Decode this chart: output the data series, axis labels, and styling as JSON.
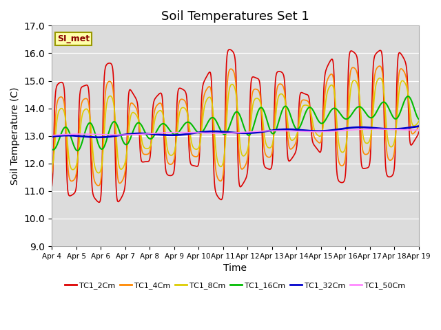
{
  "title": "Soil Temperatures Set 1",
  "xlabel": "Time",
  "ylabel": "Soil Temperature (C)",
  "ylim": [
    9.0,
    17.0
  ],
  "yticks": [
    9.0,
    10.0,
    11.0,
    12.0,
    13.0,
    14.0,
    15.0,
    16.0,
    17.0
  ],
  "date_labels": [
    "Apr 4",
    "Apr 5",
    "Apr 6",
    "Apr 7",
    "Apr 8",
    "Apr 9",
    "Apr 10",
    "Apr 11",
    "Apr 12",
    "Apr 13",
    "Apr 14",
    "Apr 15",
    "Apr 16",
    "Apr 17",
    "Apr 18",
    "Apr 19"
  ],
  "annotation": "SI_met",
  "series_names": [
    "TC1_2Cm",
    "TC1_4Cm",
    "TC1_8Cm",
    "TC1_16Cm",
    "TC1_32Cm",
    "TC1_50Cm"
  ],
  "series_colors": [
    "#dd0000",
    "#ff8800",
    "#ddcc00",
    "#00bb00",
    "#0000cc",
    "#ff88ff"
  ],
  "background_color": "#dcdcdc",
  "num_points": 1440
}
